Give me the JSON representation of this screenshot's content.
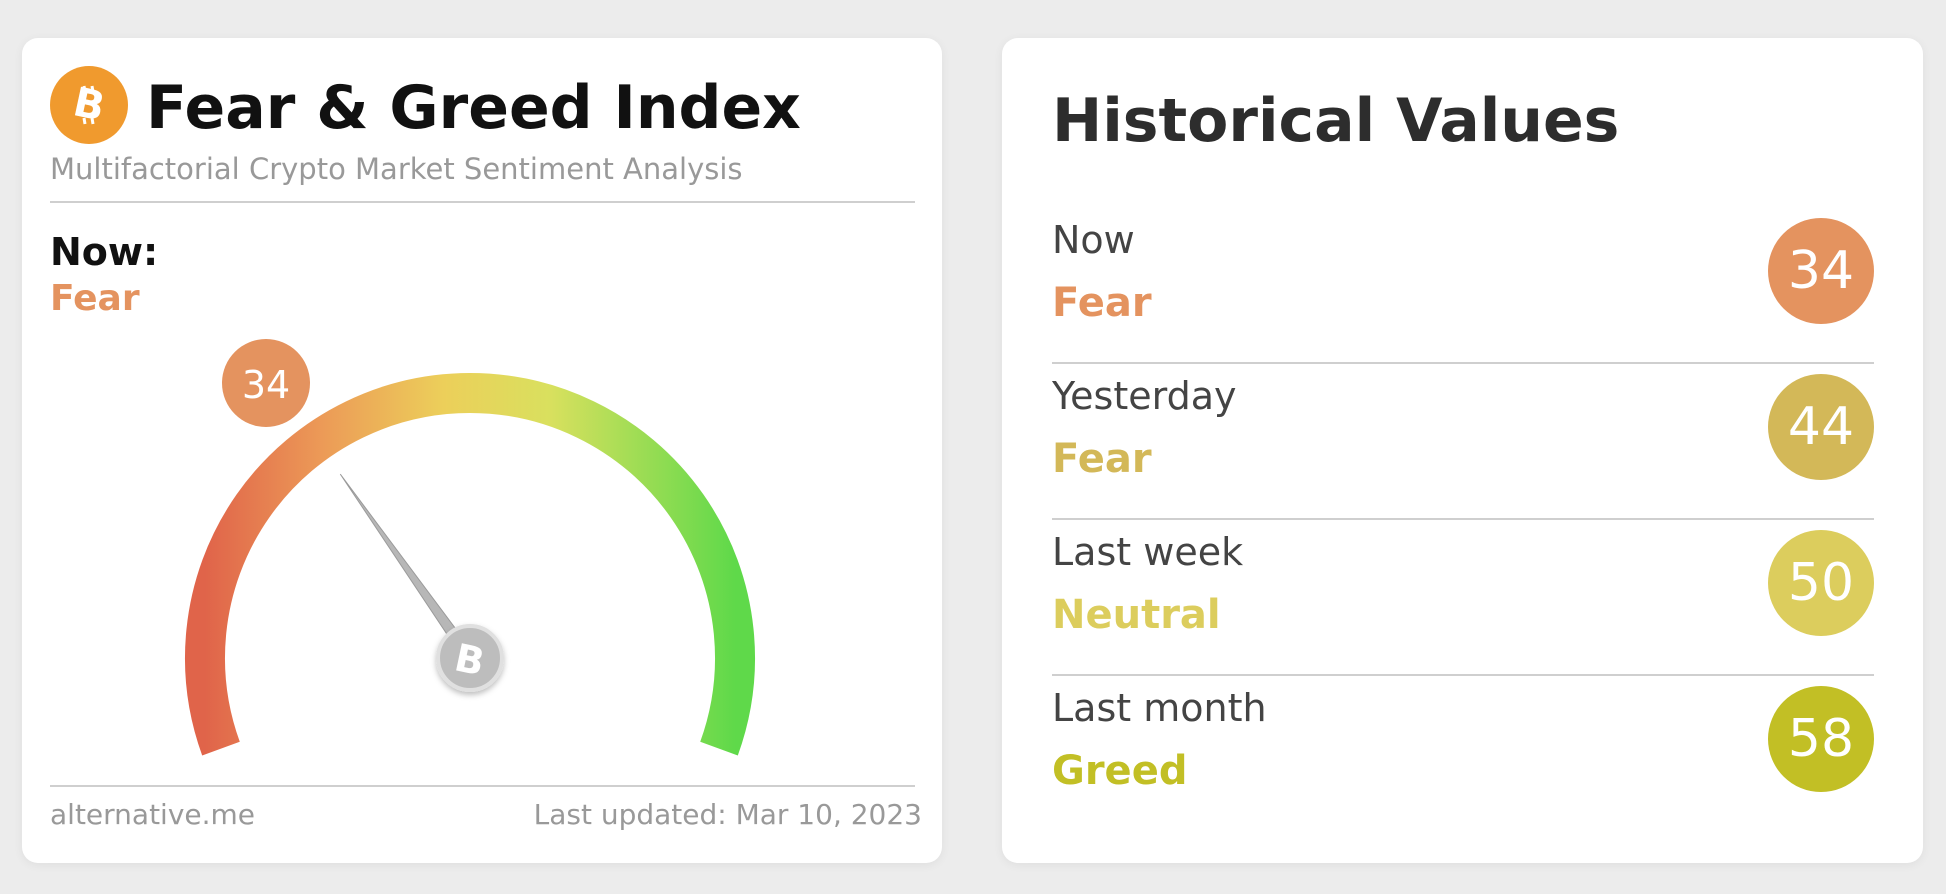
{
  "widget": {
    "title": "Fear & Greed Index",
    "subtitle": "Multifactorial Crypto Market Sentiment Analysis",
    "now_label": "Now:",
    "now_classification": "Fear",
    "now_value": "34",
    "footer_source": "alternative.me",
    "footer_updated": "Last updated: Mar 10, 2023",
    "logo_icon": "bitcoin-icon",
    "gauge_value": 34,
    "gauge_min": 0,
    "gauge_max": 100
  },
  "history": {
    "title": "Historical Values",
    "rows": [
      {
        "period": "Now",
        "classification": "Fear",
        "value": "34",
        "color": "#e4935f"
      },
      {
        "period": "Yesterday",
        "classification": "Fear",
        "value": "44",
        "color": "#d3b858"
      },
      {
        "period": "Last week",
        "classification": "Neutral",
        "value": "50",
        "color": "#dccd5d"
      },
      {
        "period": "Last month",
        "classification": "Greed",
        "value": "58",
        "color": "#c2bf25"
      }
    ]
  },
  "colors": {
    "fear": "#e4935f",
    "logo": "#f09a2e"
  }
}
